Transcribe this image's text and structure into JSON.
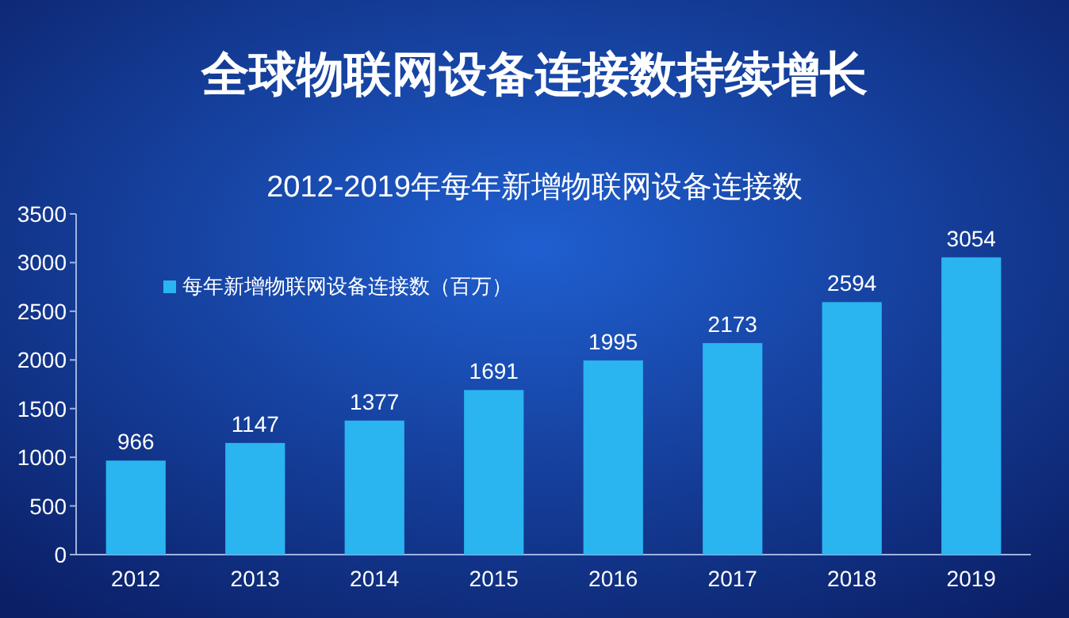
{
  "chart_data": {
    "type": "bar",
    "title": "全球物联网设备连接数持续增长",
    "subtitle": "2012-2019年每年新增物联网设备连接数",
    "categories": [
      "2012",
      "2013",
      "2014",
      "2015",
      "2016",
      "2017",
      "2018",
      "2019"
    ],
    "series": [
      {
        "name": "每年新增物联网设备连接数（百万）",
        "color": "#2ab4f0",
        "values": [
          966,
          1147,
          1377,
          1691,
          1995,
          2173,
          2594,
          3054
        ]
      }
    ],
    "ylim": [
      0,
      3500
    ],
    "yticks": [
      0,
      500,
      1000,
      1500,
      2000,
      2500,
      3000,
      3500
    ],
    "data_labels": true,
    "legend": "top left",
    "grid": false
  }
}
